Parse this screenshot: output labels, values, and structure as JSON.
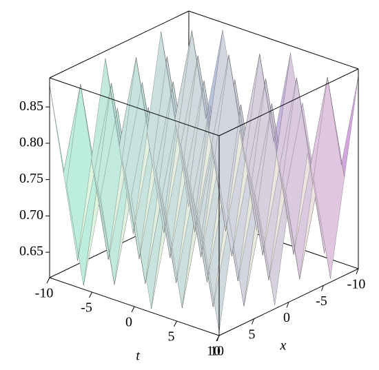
{
  "chart_data": {
    "type": "surface",
    "x_label": "x",
    "y_label": "t",
    "x": [
      -10,
      -8,
      -6,
      -4,
      -2,
      0,
      2,
      4,
      6,
      8,
      10
    ],
    "y": [
      -10,
      -8,
      -6,
      -4,
      -2,
      0,
      2,
      4,
      6,
      8,
      10
    ],
    "z": [
      [
        0.62,
        0.75,
        0.88,
        0.75,
        0.62,
        0.75,
        0.88,
        0.75,
        0.62,
        0.75,
        0.88
      ],
      [
        0.75,
        0.88,
        0.75,
        0.62,
        0.75,
        0.88,
        0.75,
        0.62,
        0.75,
        0.88,
        0.75
      ],
      [
        0.88,
        0.75,
        0.62,
        0.75,
        0.88,
        0.75,
        0.62,
        0.75,
        0.88,
        0.75,
        0.62
      ],
      [
        0.75,
        0.62,
        0.75,
        0.88,
        0.75,
        0.62,
        0.75,
        0.88,
        0.75,
        0.62,
        0.75
      ],
      [
        0.62,
        0.75,
        0.88,
        0.75,
        0.62,
        0.75,
        0.88,
        0.75,
        0.62,
        0.75,
        0.88
      ],
      [
        0.75,
        0.88,
        0.75,
        0.62,
        0.75,
        0.88,
        0.75,
        0.62,
        0.75,
        0.88,
        0.75
      ],
      [
        0.88,
        0.75,
        0.62,
        0.75,
        0.88,
        0.75,
        0.62,
        0.75,
        0.88,
        0.75,
        0.62
      ],
      [
        0.75,
        0.62,
        0.75,
        0.88,
        0.75,
        0.62,
        0.75,
        0.88,
        0.75,
        0.62,
        0.75
      ],
      [
        0.62,
        0.75,
        0.88,
        0.75,
        0.62,
        0.75,
        0.88,
        0.75,
        0.62,
        0.75,
        0.88
      ],
      [
        0.75,
        0.88,
        0.75,
        0.62,
        0.75,
        0.88,
        0.75,
        0.62,
        0.75,
        0.88,
        0.75
      ],
      [
        0.88,
        0.75,
        0.62,
        0.75,
        0.88,
        0.75,
        0.62,
        0.75,
        0.88,
        0.75,
        0.62
      ]
    ],
    "xlim": [
      -10,
      10
    ],
    "ylim": [
      -10,
      10
    ],
    "zlim": [
      0.615,
      0.89
    ],
    "xticks": [
      -10,
      -5,
      0,
      5,
      10
    ],
    "yticks": [
      -10,
      -5,
      0,
      5,
      10
    ],
    "zticks": [
      0.65,
      {
        "value": 0.7,
        "label": "0.70"
      },
      0.75,
      {
        "value": 0.8,
        "label": "0.80"
      },
      0.85
    ],
    "colors": [
      "#c880e0",
      "#6fe6d8"
    ]
  }
}
